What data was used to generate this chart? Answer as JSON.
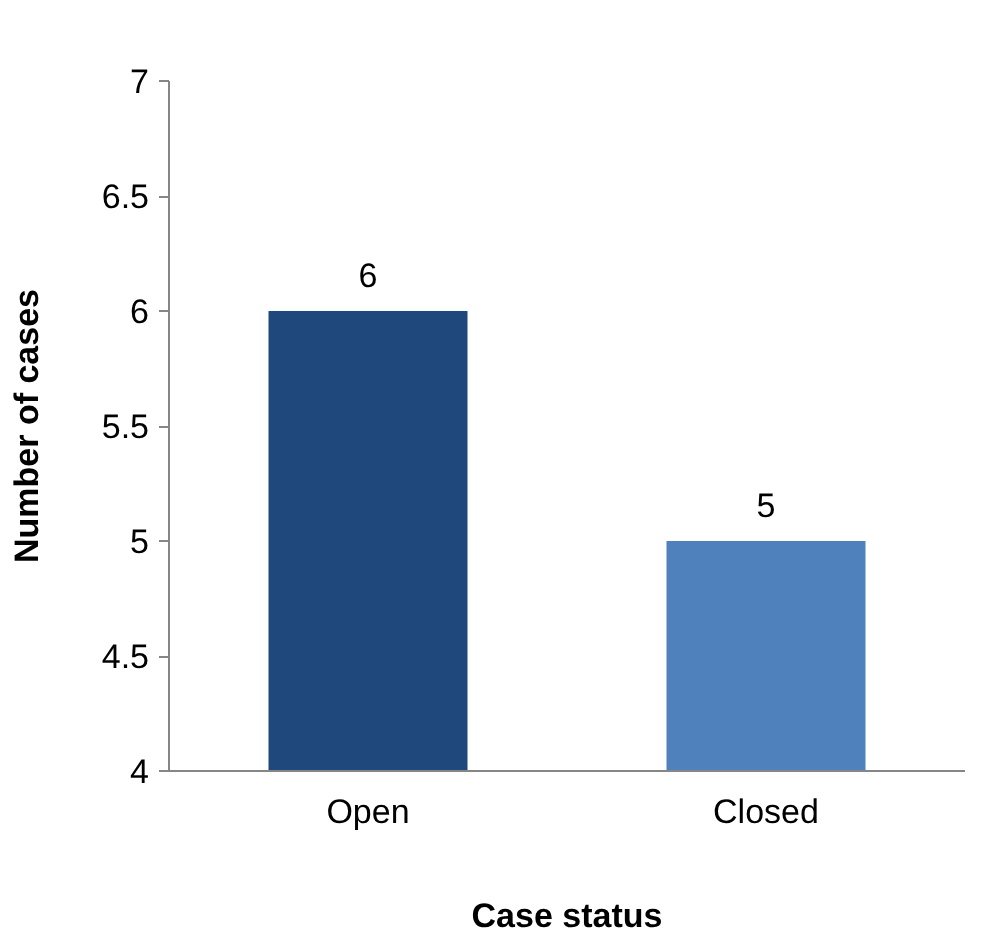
{
  "chart_data": {
    "type": "bar",
    "xlabel": "Case status",
    "ylabel": "Number of cases",
    "categories": [
      "Open",
      "Closed"
    ],
    "values": [
      6,
      5
    ],
    "colors": [
      "#1f497d",
      "#4f81bd"
    ],
    "ylim": [
      4,
      7
    ],
    "yticks": [
      4,
      4.5,
      5,
      5.5,
      6,
      6.5,
      7
    ],
    "data_labels": true,
    "grid": false
  }
}
